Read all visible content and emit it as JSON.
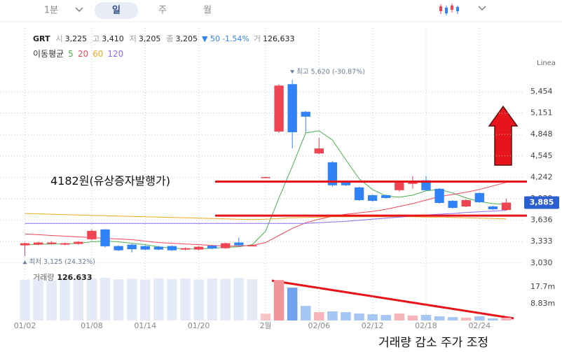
{
  "toolbar": {
    "tabs": [
      "1분",
      "일",
      "주",
      "월"
    ],
    "selected": 1
  },
  "info": {
    "ticker": "GRT",
    "items": [
      [
        "시",
        "3,225"
      ],
      [
        "고",
        "3,410"
      ],
      [
        "저",
        "3,205"
      ],
      [
        "종",
        "3,205"
      ]
    ],
    "change": "▼ 50",
    "change_pct": "-1.54%",
    "volume_label": "거",
    "volume": "126,633"
  },
  "scale_label": "Linea",
  "note": "거래량 감소 주가 조정",
  "chart_data": {
    "type": "candlestick",
    "categories": [
      "01/02",
      null,
      null,
      null,
      null,
      "01/08",
      null,
      null,
      null,
      "01/14",
      null,
      null,
      null,
      "01/20",
      null,
      null,
      null,
      null,
      "2월",
      null,
      null,
      null,
      "02/06",
      null,
      null,
      null,
      "02/12",
      null,
      null,
      null,
      "02/18",
      null,
      null,
      null,
      "02/24",
      null,
      null
    ],
    "ohlc": {
      "open": [
        3280,
        3290,
        3300,
        3290,
        3300,
        3366,
        3505,
        3270,
        3290,
        3270,
        3260,
        3270,
        3220,
        3220,
        3275,
        3240,
        3320,
        3270,
        4235,
        4890,
        5560,
        5170,
        4580,
        4455,
        4180,
        4100,
        3990,
        3990,
        4060,
        4150,
        4200,
        4080,
        3910,
        3830,
        4020,
        3830,
        3780
      ],
      "high": [
        3320,
        3330,
        3340,
        3320,
        3340,
        3510,
        3510,
        3280,
        3300,
        3280,
        3270,
        3280,
        3250,
        3270,
        3280,
        3320,
        3390,
        3290,
        4250,
        5560,
        5620,
        5180,
        4800,
        4470,
        4190,
        4110,
        4000,
        4000,
        4190,
        4260,
        4260,
        4090,
        3920,
        3930,
        4030,
        3840,
        3940
      ],
      "low": [
        3125,
        3280,
        3290,
        3280,
        3290,
        3350,
        3250,
        3200,
        3180,
        3210,
        3210,
        3200,
        3210,
        3210,
        3225,
        3230,
        3270,
        3265,
        4230,
        4870,
        4650,
        4880,
        4570,
        4110,
        4120,
        3910,
        3900,
        3940,
        4040,
        4080,
        4050,
        3870,
        3800,
        3820,
        3880,
        3780,
        3770
      ],
      "close": [
        3310,
        3320,
        3320,
        3310,
        3330,
        3485,
        3267,
        3210,
        3225,
        3220,
        3220,
        3210,
        3240,
        3260,
        3235,
        3310,
        3280,
        3280,
        4245,
        5540,
        4880,
        5100,
        4650,
        4130,
        4130,
        3920,
        3910,
        3950,
        4180,
        4170,
        4060,
        3880,
        3810,
        3920,
        3890,
        3790,
        3885
      ]
    },
    "up_color": "#ef4452",
    "down_color": "#3182f6",
    "legend_title": "이동평균",
    "series": [
      {
        "name": "5",
        "color": "#4caf50",
        "values": [
          3290,
          3295,
          3300,
          3300,
          3310,
          3330,
          3340,
          3330,
          3310,
          3290,
          3260,
          3240,
          3230,
          3230,
          3240,
          3250,
          3260,
          3290,
          3480,
          3950,
          4400,
          4870,
          4900,
          4770,
          4490,
          4220,
          4070,
          3980,
          3960,
          3990,
          4050,
          4070,
          4020,
          3950,
          3900,
          3870,
          3860
        ]
      },
      {
        "name": "20",
        "color": "#f0465a",
        "values": [
          3440,
          3430,
          3420,
          3410,
          3400,
          3390,
          3380,
          3370,
          3360,
          3340,
          3320,
          3310,
          3300,
          3290,
          3280,
          3270,
          3270,
          3280,
          3320,
          3420,
          3520,
          3600,
          3650,
          3690,
          3720,
          3740,
          3760,
          3790,
          3830,
          3870,
          3920,
          3970,
          4000,
          4030,
          4070,
          4120,
          4170
        ]
      },
      {
        "name": "60",
        "color": "#f5a623",
        "values": [
          3730,
          3725,
          3720,
          3715,
          3710,
          3705,
          3700,
          3695,
          3690,
          3685,
          3680,
          3675,
          3670,
          3665,
          3660,
          3655,
          3650,
          3645,
          3650,
          3660,
          3670,
          3675,
          3680,
          3685,
          3685,
          3685,
          3685,
          3685,
          3685,
          3685,
          3680,
          3680,
          3675,
          3670,
          3665,
          3660,
          3655
        ]
      },
      {
        "name": "120",
        "color": "#8b6cf0",
        "values": [
          3590,
          3590,
          3590,
          3590,
          3590,
          3590,
          3590,
          3590,
          3590,
          3590,
          3590,
          3590,
          3590,
          3590,
          3590,
          3590,
          3590,
          3590,
          3590,
          3590,
          3590,
          3590,
          3600,
          3610,
          3620,
          3635,
          3650,
          3665,
          3680,
          3695,
          3710,
          3720,
          3730,
          3745,
          3755,
          3765,
          3775
        ]
      }
    ],
    "ylim": [
      2890,
      5810
    ],
    "yticks": [
      {
        "value": 3030,
        "label": "3,030"
      },
      {
        "value": 3333,
        "label": "3,333"
      },
      {
        "value": 3636,
        "label": "3,636"
      },
      {
        "value": 3939,
        "label": "3,939"
      },
      {
        "value": 4242,
        "label": "4,242"
      },
      {
        "value": 4545,
        "label": "4,545"
      },
      {
        "value": 4848,
        "label": "4,848"
      },
      {
        "value": 5151,
        "label": "5,151"
      },
      {
        "value": 5454,
        "label": "5,454"
      }
    ],
    "grid": true,
    "high_label": "최고 5,620 (-30.87%)",
    "low_label": "최저 3,125 (24.32%)",
    "last_price": {
      "value": 3885,
      "label": "3,885"
    },
    "annotations": [
      {
        "text": "4182원(유상증자발행가)",
        "value": 4182,
        "color": "#e8141b"
      },
      {
        "value": 3700,
        "color": "#e8141b"
      }
    ],
    "volume": {
      "label": "거래량",
      "latest": "126.633",
      "values": [
        21.5,
        22,
        21,
        22.3,
        21.8,
        22,
        22.5,
        21.7,
        22,
        21.5,
        22.2,
        21.8,
        22,
        21.6,
        22.1,
        21.9,
        22.4,
        21.7,
        3.6,
        21.3,
        17.3,
        7.7,
        4.4,
        4.8,
        4.4,
        3.7,
        3.3,
        2.9,
        3.7,
        2.6,
        3.0,
        2.2,
        1.8,
        1.5,
        2.2,
        1.1,
        1.5
      ],
      "colors": [
        "#e4ebf7",
        "#e4ebf7",
        "#e4ebf7",
        "#e4ebf7",
        "#e4ebf7",
        "#e4ebf7",
        "#e4ebf7",
        "#e4ebf7",
        "#e4ebf7",
        "#e4ebf7",
        "#e4ebf7",
        "#e4ebf7",
        "#e4ebf7",
        "#e4ebf7",
        "#e4ebf7",
        "#e4ebf7",
        "#e4ebf7",
        "#e4ebf7",
        "#f7c4c8",
        "#f0939a",
        "#6fa3ee",
        "#a6c6f4",
        "#f6b5ba",
        "#a6c6f4",
        "#a6c6f4",
        "#a6c6f4",
        "#a6c6f4",
        "#a6c6f4",
        "#f6b5ba",
        "#f6b5ba",
        "#a6c6f4",
        "#a6c6f4",
        "#a6c6f4",
        "#f6b5ba",
        "#a6c6f4",
        "#a6c6f4",
        "#f6b5ba"
      ],
      "ylim": [
        0,
        23.2
      ],
      "yticks": [
        {
          "value": 8.83,
          "label": "8.83m"
        },
        {
          "value": 17.7,
          "label": "17.7m"
        }
      ]
    }
  }
}
